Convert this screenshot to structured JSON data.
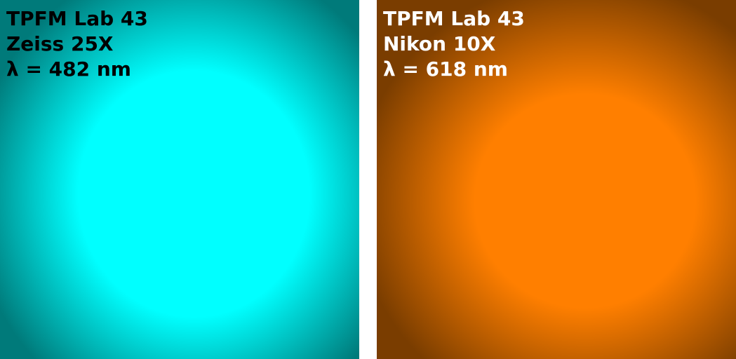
{
  "panels": [
    {
      "title": "TPFM Lab 43",
      "objective": "Zeiss 25X",
      "wavelength": "λ = 482 nm",
      "colors": {
        "illumination": "#00ffff",
        "edge": "#007a7a",
        "text": "#000000"
      }
    },
    {
      "title": "TPFM Lab 43",
      "objective": "Nikon 10X",
      "wavelength": "λ = 618 nm",
      "colors": {
        "illumination": "#ff7f00",
        "edge": "#7a3d00",
        "text": "#ffffff"
      }
    }
  ]
}
